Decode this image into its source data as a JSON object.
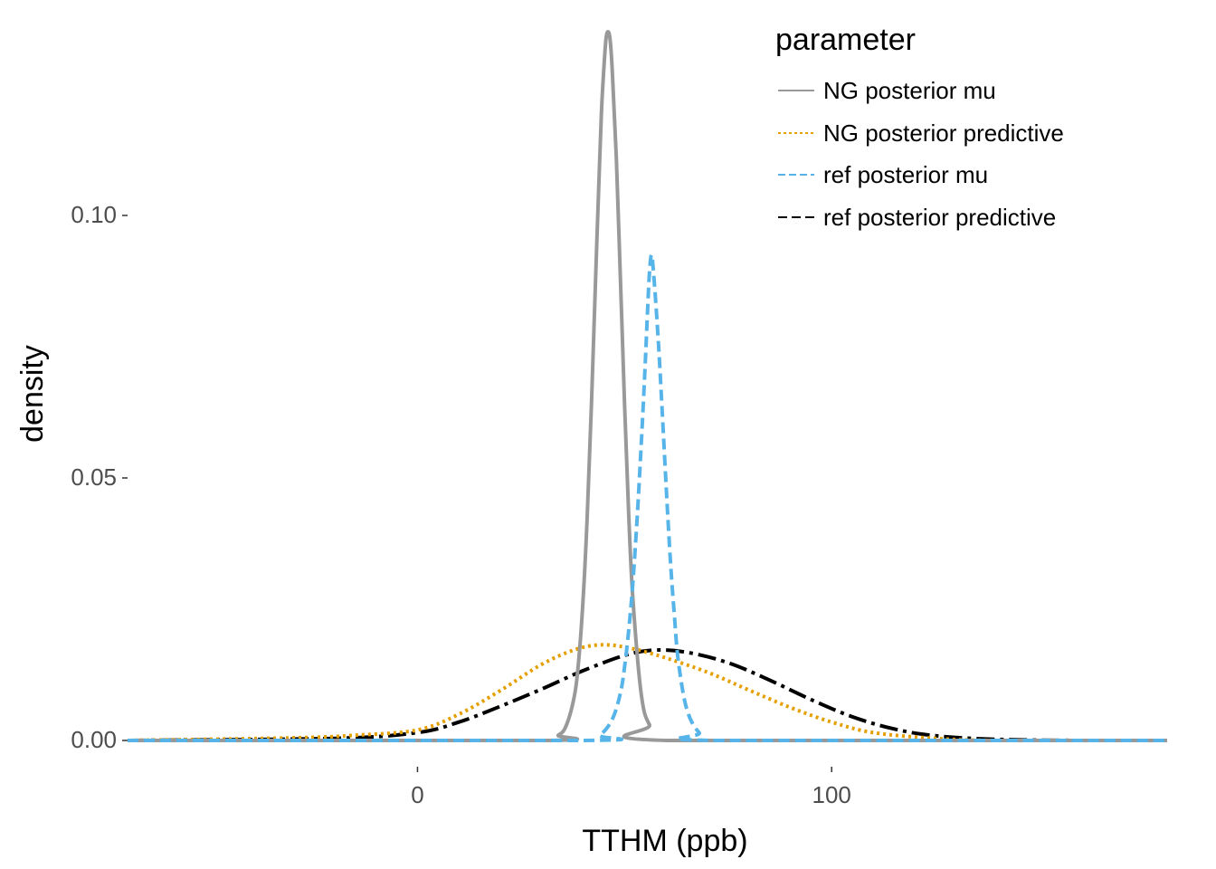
{
  "chart_data": {
    "type": "line",
    "xlabel": "TTHM (ppb)",
    "ylabel": "density",
    "xlim": [
      -70,
      181
    ],
    "ylim": [
      -0.005,
      0.135
    ],
    "x_ticks": [
      {
        "value": 0,
        "label": "0"
      },
      {
        "value": 100,
        "label": "100"
      }
    ],
    "y_ticks": [
      {
        "value": 0.0,
        "label": "0.00"
      },
      {
        "value": 0.05,
        "label": "0.05"
      },
      {
        "value": 0.1,
        "label": "0.10"
      }
    ],
    "grid": false,
    "legend": {
      "title": "parameter",
      "placement": "top-right"
    },
    "series": [
      {
        "name": "NG posterior mu",
        "color": "#999999",
        "dash": "solid",
        "x": [
          -70,
          30,
          34,
          36,
          38,
          39,
          40,
          41,
          42,
          43,
          44,
          44.5,
          45,
          45.5,
          46,
          46.5,
          47,
          48,
          49,
          50,
          51,
          52,
          54,
          56,
          60,
          181
        ],
        "y": [
          0,
          0,
          0.001,
          0.003,
          0.009,
          0.016,
          0.027,
          0.043,
          0.064,
          0.088,
          0.111,
          0.121,
          0.128,
          0.1335,
          0.135,
          0.1335,
          0.128,
          0.111,
          0.088,
          0.064,
          0.043,
          0.027,
          0.009,
          0.003,
          0,
          0
        ]
      },
      {
        "name": "NG posterior predictive",
        "color": "#E69F00",
        "dash": "dotted",
        "x": [
          -70,
          -30,
          -15,
          0,
          10,
          20,
          30,
          38,
          44,
          50,
          58,
          70,
          80,
          90,
          100,
          110,
          125,
          140,
          181
        ],
        "y": [
          0,
          0.0005,
          0.001,
          0.002,
          0.005,
          0.0095,
          0.0145,
          0.0173,
          0.0182,
          0.0178,
          0.0162,
          0.013,
          0.0096,
          0.0063,
          0.0035,
          0.0015,
          0.0004,
          0,
          0
        ]
      },
      {
        "name": "ref posterior mu",
        "color": "#56B4E9",
        "dash": "dashed",
        "x": [
          -70,
          40,
          44,
          47,
          49,
          50,
          51,
          52,
          53,
          54,
          55,
          55.5,
          56,
          56.5,
          57,
          58,
          59,
          60,
          61,
          62,
          63,
          65,
          68,
          72,
          181
        ],
        "y": [
          0,
          0,
          0.001,
          0.004,
          0.009,
          0.014,
          0.021,
          0.03,
          0.042,
          0.056,
          0.072,
          0.081,
          0.089,
          0.0925,
          0.089,
          0.078,
          0.064,
          0.049,
          0.035,
          0.024,
          0.015,
          0.006,
          0.0015,
          0,
          0
        ]
      },
      {
        "name": "ref posterior predictive",
        "color": "#000000",
        "dash": "longdash",
        "x": [
          -70,
          -20,
          0,
          10,
          20,
          30,
          40,
          50,
          57,
          65,
          75,
          85,
          95,
          105,
          115,
          125,
          140,
          160,
          181
        ],
        "y": [
          0,
          0.0004,
          0.0015,
          0.0035,
          0.0065,
          0.0098,
          0.0133,
          0.0162,
          0.0172,
          0.0168,
          0.0148,
          0.0115,
          0.0078,
          0.0045,
          0.0022,
          0.0009,
          0.0002,
          0,
          0
        ]
      }
    ]
  }
}
